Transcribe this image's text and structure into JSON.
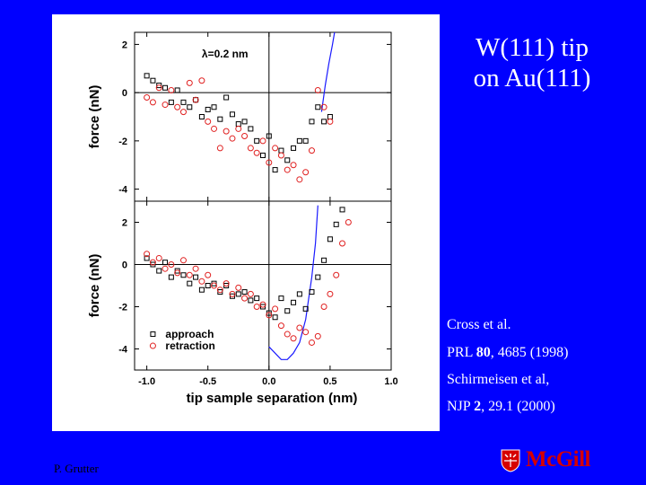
{
  "slide": {
    "title_line1": "W(111) tip",
    "title_line2": "on Au(111)",
    "ref1": "Cross et al.",
    "ref2_journal": "PRL ",
    "ref2_vol": "80",
    "ref2_rest": ", 4685 (1998)",
    "ref3": "Schirmeisen et al,",
    "ref4_journal": "NJP ",
    "ref4_vol": "2",
    "ref4_rest": ", 29.1 (2000)",
    "author": "P. Grutter",
    "logo_text": "McGill"
  },
  "colors": {
    "background": "#0000ff",
    "approach": "#000000",
    "retraction": "#e02020",
    "fit_line": "#1a1aff"
  },
  "chart_data": [
    {
      "type": "scatter",
      "panel": "top",
      "annotation": "λ=0.2 nm",
      "ylabel": "force (nN)",
      "xlim": [
        -1.1,
        1.0
      ],
      "ylim": [
        -4.5,
        2.5
      ],
      "yticks": [
        "2",
        "0",
        "-2",
        "-4"
      ],
      "series": [
        {
          "marker": "square",
          "points": [
            [
              -1.0,
              0.7
            ],
            [
              -0.95,
              0.5
            ],
            [
              -0.9,
              0.3
            ],
            [
              -0.85,
              0.2
            ],
            [
              -0.8,
              -0.4
            ],
            [
              -0.75,
              0.1
            ],
            [
              -0.7,
              -0.4
            ],
            [
              -0.65,
              -0.6
            ],
            [
              -0.6,
              -0.3
            ],
            [
              -0.55,
              -1.0
            ],
            [
              -0.5,
              -0.7
            ],
            [
              -0.45,
              -0.6
            ],
            [
              -0.4,
              -1.1
            ],
            [
              -0.35,
              -0.2
            ],
            [
              -0.3,
              -0.9
            ],
            [
              -0.25,
              -1.3
            ],
            [
              -0.2,
              -1.2
            ],
            [
              -0.15,
              -1.5
            ],
            [
              -0.1,
              -2.0
            ],
            [
              -0.05,
              -2.6
            ],
            [
              0.0,
              -1.8
            ],
            [
              0.05,
              -3.2
            ],
            [
              0.1,
              -2.4
            ],
            [
              0.15,
              -2.8
            ],
            [
              0.2,
              -2.3
            ],
            [
              0.25,
              -2.0
            ],
            [
              0.3,
              -2.0
            ],
            [
              0.35,
              -1.2
            ],
            [
              0.4,
              -0.6
            ],
            [
              0.45,
              -1.2
            ],
            [
              0.5,
              -1.0
            ]
          ]
        },
        {
          "marker": "circle",
          "points": [
            [
              -1.0,
              -0.2
            ],
            [
              -0.95,
              -0.4
            ],
            [
              -0.9,
              0.2
            ],
            [
              -0.85,
              -0.5
            ],
            [
              -0.8,
              0.1
            ],
            [
              -0.75,
              -0.6
            ],
            [
              -0.7,
              -0.8
            ],
            [
              -0.65,
              0.4
            ],
            [
              -0.6,
              -0.3
            ],
            [
              -0.55,
              0.5
            ],
            [
              -0.5,
              -1.2
            ],
            [
              -0.45,
              -1.5
            ],
            [
              -0.4,
              -2.3
            ],
            [
              -0.35,
              -1.6
            ],
            [
              -0.3,
              -1.9
            ],
            [
              -0.25,
              -1.5
            ],
            [
              -0.2,
              -1.8
            ],
            [
              -0.15,
              -2.3
            ],
            [
              -0.1,
              -2.5
            ],
            [
              -0.05,
              -2.0
            ],
            [
              0.0,
              -2.9
            ],
            [
              0.05,
              -2.3
            ],
            [
              0.1,
              -2.6
            ],
            [
              0.15,
              -3.2
            ],
            [
              0.2,
              -3.0
            ],
            [
              0.25,
              -3.6
            ],
            [
              0.3,
              -3.3
            ],
            [
              0.35,
              -2.4
            ],
            [
              0.4,
              0.1
            ],
            [
              0.45,
              -0.6
            ],
            [
              0.5,
              -1.2
            ]
          ]
        }
      ],
      "fit_line": [
        [
          0.43,
          -0.8
        ],
        [
          0.46,
          0.3
        ],
        [
          0.49,
          1.2
        ],
        [
          0.52,
          2.0
        ],
        [
          0.55,
          2.9
        ]
      ]
    },
    {
      "type": "scatter",
      "panel": "bottom",
      "xlabel": "tip sample separation (nm)",
      "ylabel": "force (nN)",
      "xlim": [
        -1.1,
        1.0
      ],
      "ylim": [
        -5.0,
        3.0
      ],
      "xticks": [
        "-1.0",
        "-0.5",
        "0.0",
        "0.5",
        "1.0"
      ],
      "yticks": [
        "2",
        "0",
        "-2",
        "-4"
      ],
      "legend": [
        "approach",
        "retraction"
      ],
      "series": [
        {
          "name": "approach",
          "marker": "square",
          "points": [
            [
              -1.0,
              0.3
            ],
            [
              -0.95,
              0.0
            ],
            [
              -0.9,
              -0.3
            ],
            [
              -0.85,
              0.1
            ],
            [
              -0.8,
              -0.6
            ],
            [
              -0.75,
              -0.3
            ],
            [
              -0.7,
              -0.5
            ],
            [
              -0.65,
              -0.9
            ],
            [
              -0.6,
              -0.6
            ],
            [
              -0.55,
              -1.2
            ],
            [
              -0.5,
              -1.0
            ],
            [
              -0.45,
              -0.9
            ],
            [
              -0.4,
              -1.3
            ],
            [
              -0.35,
              -1.0
            ],
            [
              -0.3,
              -1.5
            ],
            [
              -0.25,
              -1.4
            ],
            [
              -0.2,
              -1.3
            ],
            [
              -0.15,
              -1.7
            ],
            [
              -0.1,
              -1.6
            ],
            [
              -0.05,
              -2.0
            ],
            [
              0.0,
              -2.3
            ],
            [
              0.05,
              -2.5
            ],
            [
              0.1,
              -1.6
            ],
            [
              0.15,
              -2.2
            ],
            [
              0.2,
              -1.8
            ],
            [
              0.25,
              -1.4
            ],
            [
              0.3,
              -2.1
            ],
            [
              0.35,
              -1.3
            ],
            [
              0.4,
              -0.6
            ],
            [
              0.45,
              0.2
            ],
            [
              0.5,
              1.2
            ],
            [
              0.55,
              1.9
            ],
            [
              0.6,
              2.6
            ]
          ]
        },
        {
          "name": "retraction",
          "marker": "circle",
          "points": [
            [
              -1.0,
              0.5
            ],
            [
              -0.95,
              0.1
            ],
            [
              -0.9,
              0.3
            ],
            [
              -0.85,
              -0.2
            ],
            [
              -0.8,
              0.0
            ],
            [
              -0.75,
              -0.4
            ],
            [
              -0.7,
              0.2
            ],
            [
              -0.65,
              -0.5
            ],
            [
              -0.6,
              -0.2
            ],
            [
              -0.55,
              -0.8
            ],
            [
              -0.5,
              -0.5
            ],
            [
              -0.45,
              -1.0
            ],
            [
              -0.4,
              -1.2
            ],
            [
              -0.35,
              -0.9
            ],
            [
              -0.3,
              -1.4
            ],
            [
              -0.25,
              -1.1
            ],
            [
              -0.2,
              -1.6
            ],
            [
              -0.15,
              -1.4
            ],
            [
              -0.1,
              -2.0
            ],
            [
              -0.05,
              -1.9
            ],
            [
              0.0,
              -2.4
            ],
            [
              0.05,
              -2.1
            ],
            [
              0.1,
              -2.9
            ],
            [
              0.15,
              -3.3
            ],
            [
              0.2,
              -3.5
            ],
            [
              0.25,
              -3.0
            ],
            [
              0.3,
              -3.2
            ],
            [
              0.35,
              -3.7
            ],
            [
              0.4,
              -3.4
            ],
            [
              0.45,
              -2.0
            ],
            [
              0.5,
              -1.4
            ],
            [
              0.55,
              -0.5
            ],
            [
              0.6,
              1.0
            ],
            [
              0.65,
              2.0
            ],
            [
              0.7,
              3.4
            ]
          ]
        }
      ],
      "fit_line": [
        [
          0.0,
          -3.9
        ],
        [
          0.05,
          -4.2
        ],
        [
          0.1,
          -4.5
        ],
        [
          0.15,
          -4.5
        ],
        [
          0.2,
          -4.2
        ],
        [
          0.25,
          -3.7
        ],
        [
          0.3,
          -2.6
        ],
        [
          0.35,
          -0.6
        ],
        [
          0.38,
          1.0
        ],
        [
          0.4,
          2.8
        ]
      ]
    }
  ]
}
